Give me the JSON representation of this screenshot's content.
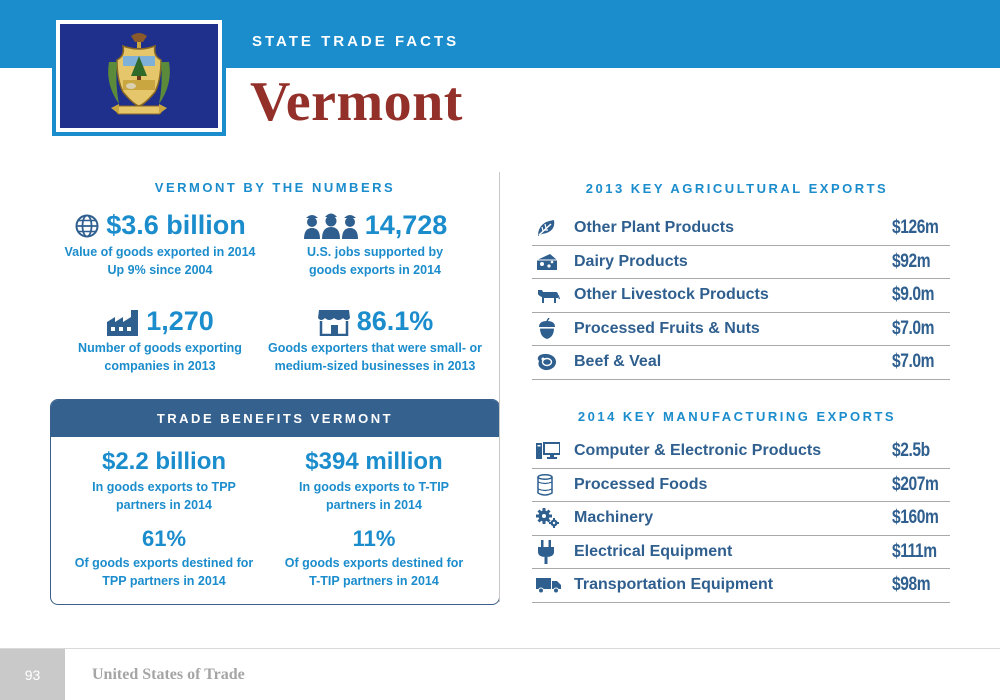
{
  "header": {
    "kicker": "STATE TRADE FACTS",
    "state": "Vermont",
    "band_color": "#1b8ccc",
    "title_color": "#93302a"
  },
  "by_numbers": {
    "heading": "VERMONT BY THE NUMBERS",
    "stats": [
      {
        "icon": "globe-icon",
        "value": "$3.6 billion",
        "desc_line1": "Value of goods exported in 2014",
        "desc_line2": "Up 9% since 2004"
      },
      {
        "icon": "workers-icon",
        "value": "14,728",
        "desc_line1": "U.S. jobs supported by",
        "desc_line2": "goods exports in 2014"
      },
      {
        "icon": "factory-icon",
        "value": "1,270",
        "desc_line1": "Number of goods exporting",
        "desc_line2": "companies in 2013"
      },
      {
        "icon": "storefront-icon",
        "value": "86.1%",
        "desc_line1": "Goods exporters that were small- or",
        "desc_line2": "medium-sized businesses in 2013"
      }
    ]
  },
  "benefits": {
    "heading": "TRADE BENEFITS VERMONT",
    "items": [
      {
        "value": "$2.2 billion",
        "desc_line1": "In goods exports to TPP",
        "desc_line2": "partners in 2014"
      },
      {
        "value": "$394 million",
        "desc_line1": "In goods exports to T-TIP",
        "desc_line2": "partners in 2014"
      },
      {
        "value": "61%",
        "desc_line1": "Of goods exports destined for",
        "desc_line2": "TPP partners in 2014"
      },
      {
        "value": "11%",
        "desc_line1": "Of goods exports destined for",
        "desc_line2": "T-TIP partners in 2014"
      }
    ]
  },
  "agri": {
    "heading": "2013 KEY AGRICULTURAL EXPORTS",
    "rows": [
      {
        "icon": "plant-icon",
        "label": "Other Plant Products",
        "value": "$126m"
      },
      {
        "icon": "cheese-icon",
        "label": "Dairy Products",
        "value": "$92m"
      },
      {
        "icon": "cow-icon",
        "label": "Other Livestock Products",
        "value": "$9.0m"
      },
      {
        "icon": "acorn-icon",
        "label": "Processed Fruits & Nuts",
        "value": "$7.0m"
      },
      {
        "icon": "steak-icon",
        "label": "Beef & Veal",
        "value": "$7.0m"
      }
    ]
  },
  "manu": {
    "heading": "2014 KEY MANUFACTURING EXPORTS",
    "rows": [
      {
        "icon": "computer-icon",
        "label": "Computer & Electronic Products",
        "value": "$2.5b"
      },
      {
        "icon": "can-icon",
        "label": "Processed Foods",
        "value": "$207m"
      },
      {
        "icon": "gears-icon",
        "label": "Machinery",
        "value": "$160m"
      },
      {
        "icon": "plug-icon",
        "label": "Electrical Equipment",
        "value": "$111m"
      },
      {
        "icon": "truck-icon",
        "label": "Transportation Equipment",
        "value": "$98m"
      }
    ]
  },
  "footer": {
    "page": "93",
    "title": "United States of Trade"
  }
}
